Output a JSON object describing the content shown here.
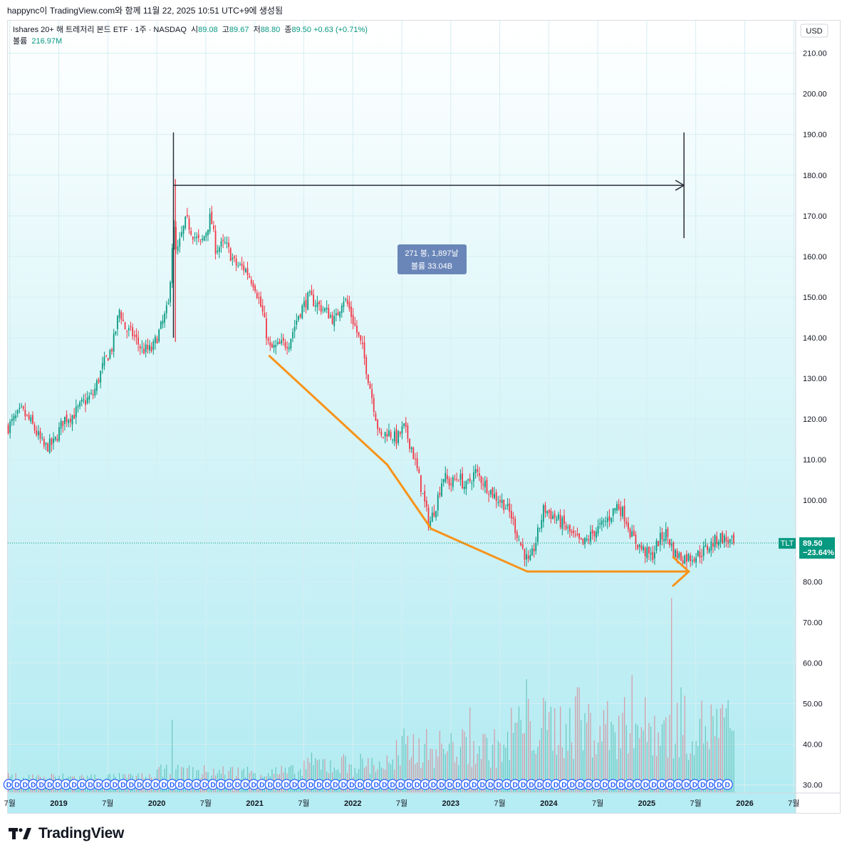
{
  "header": {
    "caption": "happync이 TradingView.com와 함께 11월 22, 2025 10:51 UTC+9에 생성됨"
  },
  "legend": {
    "symbol": "Ishares 20+ 해 트레저리 본드 ETF · 1주 · NASDAQ",
    "open_label": "시",
    "open": "89.08",
    "high_label": "고",
    "high": "89.67",
    "low_label": "저",
    "low": "88.80",
    "close_label": "종",
    "close": "89.50",
    "change": "+0.63 (+0.71%)",
    "volume_label": "볼륨",
    "volume": "216.97M"
  },
  "colors": {
    "up": "#089981",
    "down": "#f23645",
    "annotation": "#f7931a",
    "measure": "#2a2e39",
    "badge": "#089981",
    "callout": "#6a86b9",
    "bg_top": "#ffffff",
    "bg_bottom": "#b2ebf2"
  },
  "chart_data": {
    "type": "candlestick",
    "ticker": "TLT",
    "currency": "USD",
    "interval": "1W",
    "ylim": [
      28,
      218
    ],
    "y_ticks": [
      "210.00",
      "200.00",
      "190.00",
      "180.00",
      "170.00",
      "160.00",
      "150.00",
      "140.00",
      "130.00",
      "120.00",
      "110.00",
      "100.00",
      "90.00",
      "80.00",
      "70.00",
      "60.00",
      "50.00",
      "40.00",
      "30.00"
    ],
    "x_labels": [
      {
        "label": "7월",
        "t": 2018.5
      },
      {
        "label": "2019",
        "t": 2019.0
      },
      {
        "label": "7월",
        "t": 2019.5
      },
      {
        "label": "2020",
        "t": 2020.0
      },
      {
        "label": "7월",
        "t": 2020.5
      },
      {
        "label": "2021",
        "t": 2021.0
      },
      {
        "label": "7월",
        "t": 2021.5
      },
      {
        "label": "2022",
        "t": 2022.0
      },
      {
        "label": "7월",
        "t": 2022.5
      },
      {
        "label": "2023",
        "t": 2023.0
      },
      {
        "label": "7월",
        "t": 2023.5
      },
      {
        "label": "2024",
        "t": 2024.0
      },
      {
        "label": "7월",
        "t": 2024.5
      },
      {
        "label": "2025",
        "t": 2025.0
      },
      {
        "label": "7월",
        "t": 2025.5
      },
      {
        "label": "2026",
        "t": 2026.0
      },
      {
        "label": "7월",
        "t": 2026.5
      }
    ],
    "xlim": [
      2018.48,
      2026.52
    ],
    "price_path": [
      {
        "t": 2018.48,
        "p": 118
      },
      {
        "t": 2018.62,
        "p": 122
      },
      {
        "t": 2018.72,
        "p": 119
      },
      {
        "t": 2018.85,
        "p": 113
      },
      {
        "t": 2018.95,
        "p": 114
      },
      {
        "t": 2019.05,
        "p": 120
      },
      {
        "t": 2019.15,
        "p": 121
      },
      {
        "t": 2019.25,
        "p": 124
      },
      {
        "t": 2019.35,
        "p": 126
      },
      {
        "t": 2019.45,
        "p": 133
      },
      {
        "t": 2019.55,
        "p": 138
      },
      {
        "t": 2019.62,
        "p": 147
      },
      {
        "t": 2019.68,
        "p": 142
      },
      {
        "t": 2019.75,
        "p": 141
      },
      {
        "t": 2019.85,
        "p": 137
      },
      {
        "t": 2019.95,
        "p": 137
      },
      {
        "t": 2020.05,
        "p": 143
      },
      {
        "t": 2020.12,
        "p": 148
      },
      {
        "t": 2020.17,
        "p": 168
      },
      {
        "t": 2020.2,
        "p": 160
      },
      {
        "t": 2020.25,
        "p": 165
      },
      {
        "t": 2020.3,
        "p": 169
      },
      {
        "t": 2020.38,
        "p": 165
      },
      {
        "t": 2020.45,
        "p": 163
      },
      {
        "t": 2020.5,
        "p": 166
      },
      {
        "t": 2020.55,
        "p": 170
      },
      {
        "t": 2020.6,
        "p": 162
      },
      {
        "t": 2020.7,
        "p": 163
      },
      {
        "t": 2020.8,
        "p": 158
      },
      {
        "t": 2020.9,
        "p": 157
      },
      {
        "t": 2021.0,
        "p": 153
      },
      {
        "t": 2021.08,
        "p": 146
      },
      {
        "t": 2021.15,
        "p": 137
      },
      {
        "t": 2021.25,
        "p": 138
      },
      {
        "t": 2021.35,
        "p": 139
      },
      {
        "t": 2021.45,
        "p": 146
      },
      {
        "t": 2021.55,
        "p": 150
      },
      {
        "t": 2021.65,
        "p": 148
      },
      {
        "t": 2021.75,
        "p": 146
      },
      {
        "t": 2021.82,
        "p": 144
      },
      {
        "t": 2021.9,
        "p": 150
      },
      {
        "t": 2021.95,
        "p": 148
      },
      {
        "t": 2022.02,
        "p": 143
      },
      {
        "t": 2022.1,
        "p": 137
      },
      {
        "t": 2022.2,
        "p": 125
      },
      {
        "t": 2022.28,
        "p": 115
      },
      {
        "t": 2022.35,
        "p": 117
      },
      {
        "t": 2022.45,
        "p": 115
      },
      {
        "t": 2022.52,
        "p": 118
      },
      {
        "t": 2022.6,
        "p": 113
      },
      {
        "t": 2022.68,
        "p": 105
      },
      {
        "t": 2022.78,
        "p": 94
      },
      {
        "t": 2022.85,
        "p": 99
      },
      {
        "t": 2022.92,
        "p": 106
      },
      {
        "t": 2023.0,
        "p": 104
      },
      {
        "t": 2023.08,
        "p": 106
      },
      {
        "t": 2023.15,
        "p": 103
      },
      {
        "t": 2023.25,
        "p": 107
      },
      {
        "t": 2023.35,
        "p": 104
      },
      {
        "t": 2023.45,
        "p": 101
      },
      {
        "t": 2023.55,
        "p": 99
      },
      {
        "t": 2023.62,
        "p": 96
      },
      {
        "t": 2023.7,
        "p": 90
      },
      {
        "t": 2023.8,
        "p": 84
      },
      {
        "t": 2023.88,
        "p": 91
      },
      {
        "t": 2023.95,
        "p": 98
      },
      {
        "t": 2024.05,
        "p": 96
      },
      {
        "t": 2024.15,
        "p": 94
      },
      {
        "t": 2024.25,
        "p": 91
      },
      {
        "t": 2024.35,
        "p": 89
      },
      {
        "t": 2024.45,
        "p": 92
      },
      {
        "t": 2024.55,
        "p": 94
      },
      {
        "t": 2024.62,
        "p": 96
      },
      {
        "t": 2024.7,
        "p": 99
      },
      {
        "t": 2024.78,
        "p": 96
      },
      {
        "t": 2024.85,
        "p": 91
      },
      {
        "t": 2024.95,
        "p": 88
      },
      {
        "t": 2025.05,
        "p": 86
      },
      {
        "t": 2025.12,
        "p": 90
      },
      {
        "t": 2025.2,
        "p": 92
      },
      {
        "t": 2025.28,
        "p": 87
      },
      {
        "t": 2025.35,
        "p": 86
      },
      {
        "t": 2025.45,
        "p": 86
      },
      {
        "t": 2025.55,
        "p": 87
      },
      {
        "t": 2025.65,
        "p": 89
      },
      {
        "t": 2025.75,
        "p": 91
      },
      {
        "t": 2025.82,
        "p": 90
      },
      {
        "t": 2025.89,
        "p": 89.5
      }
    ],
    "volume_spikes": [
      {
        "t": 2020.15,
        "v": 46
      },
      {
        "t": 2022.45,
        "v": 41
      },
      {
        "t": 2023.2,
        "v": 49
      },
      {
        "t": 2023.78,
        "v": 56
      },
      {
        "t": 2024.3,
        "v": 54
      },
      {
        "t": 2024.85,
        "v": 57
      },
      {
        "t": 2025.25,
        "v": 76
      },
      {
        "t": 2025.35,
        "v": 54
      }
    ],
    "last_price": {
      "ticker": "TLT",
      "price": "89.50",
      "change_pct": "−23.64%",
      "value": 89.5
    },
    "measure": {
      "start_t": 2020.17,
      "end_t": 2025.38,
      "top": 190.5,
      "bottom": 164.5,
      "level": 177.5,
      "bars_text": "271 봉, 1,897날",
      "volume_text": "볼륨 33.04B"
    },
    "annotation_path": [
      {
        "t": 2021.15,
        "p": 135.5
      },
      {
        "t": 2022.35,
        "p": 108.8
      },
      {
        "t": 2022.8,
        "p": 93
      },
      {
        "t": 2023.78,
        "p": 82.5
      },
      {
        "t": 2025.4,
        "p": 82.5
      }
    ],
    "dividend_label": "D",
    "dividend_range": [
      2018.48,
      2025.86
    ]
  },
  "footer": {
    "brand": "TradingView"
  }
}
